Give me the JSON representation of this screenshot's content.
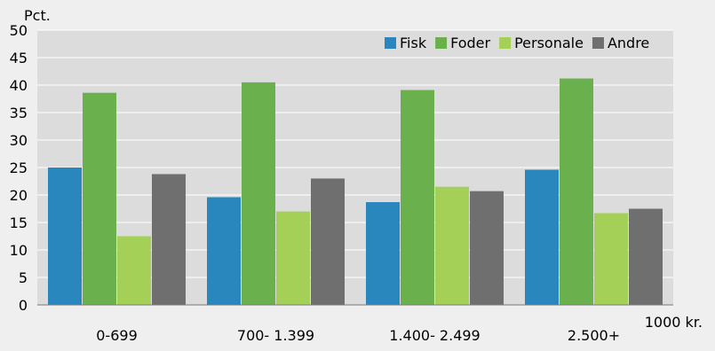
{
  "chart_data": {
    "type": "bar",
    "ylabel": "Pct.",
    "xlabel": "1000 kr.",
    "ylim": [
      0,
      50
    ],
    "yticks": [
      0,
      5,
      10,
      15,
      20,
      25,
      30,
      35,
      40,
      45,
      50
    ],
    "grid": true,
    "legend_position": "top-right",
    "categories": [
      "0-699",
      "700- 1.399",
      "1.400- 2.499",
      "2.500+"
    ],
    "series": [
      {
        "name": "Fisk",
        "color": "#2a87bd",
        "values": [
          25.0,
          19.6,
          18.7,
          24.6
        ]
      },
      {
        "name": "Foder",
        "color": "#6ab04c",
        "values": [
          38.6,
          40.5,
          39.1,
          41.2
        ]
      },
      {
        "name": "Personale",
        "color": "#a5d057",
        "values": [
          12.5,
          17.0,
          21.5,
          16.7
        ]
      },
      {
        "name": "Andre",
        "color": "#6f6f6f",
        "values": [
          23.8,
          23.0,
          20.7,
          17.5
        ]
      }
    ]
  }
}
